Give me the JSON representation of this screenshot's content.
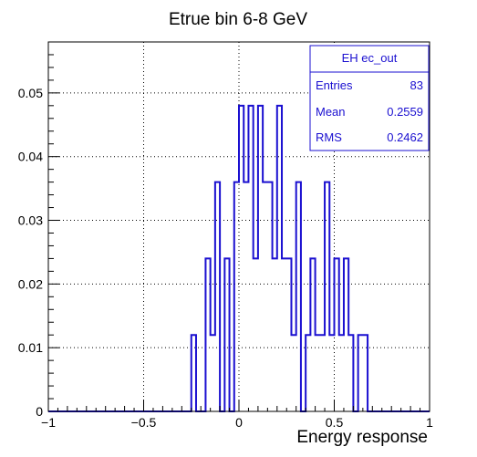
{
  "chart_data": {
    "type": "histogram",
    "title": "Etrue bin 6-8 GeV",
    "xlabel": "Energy response",
    "ylabel": "",
    "xlim": [
      -1,
      1
    ],
    "ylim": [
      0,
      0.058
    ],
    "grid": true,
    "bin_width": 0.025,
    "x_ticks": [
      -1,
      -0.5,
      0,
      0.5,
      1
    ],
    "x_tick_labels": [
      "−1",
      "−0.5",
      "0",
      "0.5",
      "1"
    ],
    "y_ticks": [
      0,
      0.01,
      0.02,
      0.03,
      0.04,
      0.05
    ],
    "y_tick_labels": [
      "0",
      "0.01",
      "0.02",
      "0.03",
      "0.04",
      "0.05"
    ],
    "series": [
      {
        "color": "#1a0fd0",
        "x": [
          -0.25,
          -0.225,
          -0.2,
          -0.175,
          -0.15,
          -0.125,
          -0.1,
          -0.075,
          -0.05,
          -0.025,
          0,
          0.025,
          0.05,
          0.075,
          0.1,
          0.125,
          0.15,
          0.175,
          0.2,
          0.225,
          0.25,
          0.275,
          0.3,
          0.325,
          0.35,
          0.375,
          0.4,
          0.425,
          0.45,
          0.475,
          0.5,
          0.525,
          0.55,
          0.575,
          0.6,
          0.625,
          0.65,
          0.675,
          0.7,
          0.725,
          0.75,
          0.775,
          0.8,
          0.825,
          0.85
        ],
        "values": [
          0.012,
          0,
          0,
          0.024,
          0.012,
          0.036,
          0,
          0.024,
          0,
          0.036,
          0.048,
          0.036,
          0.048,
          0.024,
          0.048,
          0.036,
          0.036,
          0.024,
          0.048,
          0.024,
          0.024,
          0.012,
          0.036,
          0,
          0.012,
          0.024,
          0.012,
          0.012,
          0.036,
          0.012,
          0.024,
          0.012,
          0.024,
          0.012,
          0,
          0.012,
          0.012,
          0,
          0,
          0,
          0,
          0,
          0,
          0,
          0
        ]
      }
    ],
    "stats_box": {
      "name": "EH ec_out",
      "rows": [
        {
          "label": "Entries",
          "value": "83"
        },
        {
          "label": "Mean",
          "value": "0.2559"
        },
        {
          "label": "RMS",
          "value": "0.2462"
        }
      ]
    }
  }
}
